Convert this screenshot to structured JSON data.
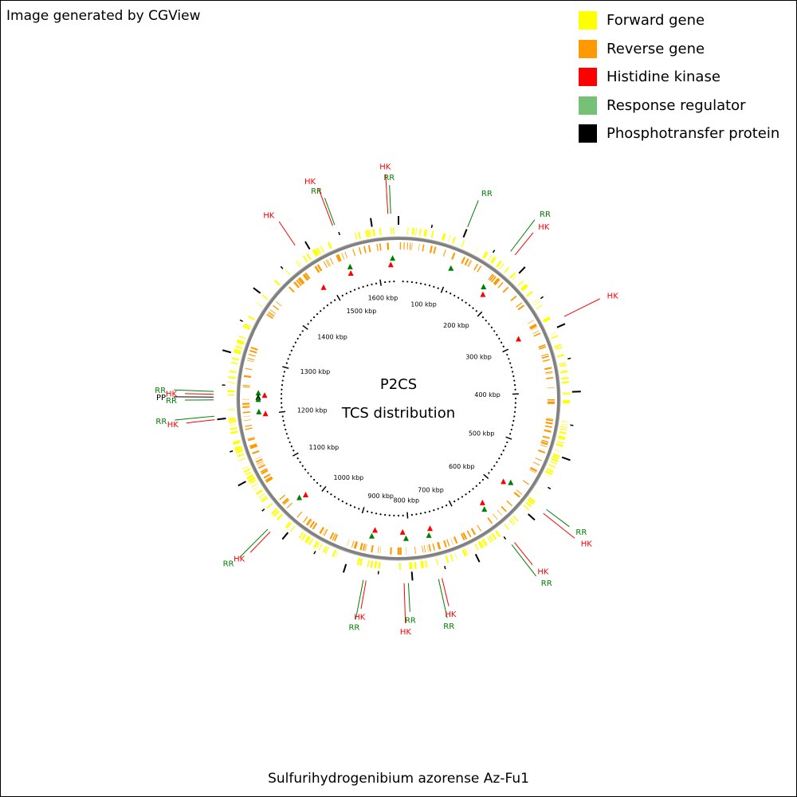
{
  "credit": "Image generated by CGView",
  "legend": [
    {
      "label": "Forward gene",
      "color": "#ffff00"
    },
    {
      "label": "Reverse gene",
      "color": "#ff9900"
    },
    {
      "label": "Histidine kinase",
      "color": "#ff0000"
    },
    {
      "label": "Response regulator",
      "color": "#77c077"
    },
    {
      "label": "Phosphotransfer protein",
      "color": "#000000"
    }
  ],
  "center": {
    "line1": "P2CS",
    "line2": "TCS distribution"
  },
  "organism": "Sulfurihydrogenibium azorense Az-Fu1",
  "colors": {
    "forward": "#ffff00",
    "reverse": "#ff9900",
    "backbone": "#808080",
    "hk": "#ff0000",
    "rr": "#008000",
    "pp": "#000000"
  },
  "genome_kbp": 1640,
  "kbp_ticks": [
    {
      "kbp": 100,
      "label": "100 kbp"
    },
    {
      "kbp": 200,
      "label": "200 kbp"
    },
    {
      "kbp": 300,
      "label": "300 kbp"
    },
    {
      "kbp": 400,
      "label": "400 kbp"
    },
    {
      "kbp": 500,
      "label": "500 kbp"
    },
    {
      "kbp": 600,
      "label": "600 kbp"
    },
    {
      "kbp": 700,
      "label": "700 kbp"
    },
    {
      "kbp": 800,
      "label": "800 kbp"
    },
    {
      "kbp": 900,
      "label": "900 kbp"
    },
    {
      "kbp": 1000,
      "label": "1000 kbp"
    },
    {
      "kbp": 1100,
      "label": "1100 kbp"
    },
    {
      "kbp": 1200,
      "label": "1200 kbp"
    },
    {
      "kbp": 1300,
      "label": "1300 kbp"
    },
    {
      "kbp": 1400,
      "label": "1400 kbp"
    },
    {
      "kbp": 1500,
      "label": "1500 kbp"
    },
    {
      "kbp": 1600,
      "label": "1600 kbp"
    }
  ],
  "tcs_callouts": [
    {
      "label": "RR",
      "type": "rr",
      "kbp": 1629
    },
    {
      "label": "HK",
      "type": "hk",
      "kbp": 1625
    },
    {
      "label": "RR",
      "type": "rr",
      "kbp": 100
    },
    {
      "label": "RR",
      "type": "rr",
      "kbp": 170
    },
    {
      "label": "HK",
      "type": "hk",
      "kbp": 178
    },
    {
      "label": "HK",
      "type": "hk",
      "kbp": 290
    },
    {
      "label": "RR",
      "type": "rr",
      "kbp": 1548
    },
    {
      "label": "HK",
      "type": "hk",
      "kbp": 1545
    },
    {
      "label": "HK",
      "type": "hk",
      "kbp": 1485
    },
    {
      "label": "RR",
      "type": "rr",
      "kbp": 1240
    },
    {
      "label": "HK",
      "type": "hk",
      "kbp": 1236
    },
    {
      "label": "PP",
      "type": "pp",
      "kbp": 1232
    },
    {
      "label": "RR",
      "type": "rr",
      "kbp": 1228
    },
    {
      "label": "RR",
      "type": "rr",
      "kbp": 1205
    },
    {
      "label": "HK",
      "type": "hk",
      "kbp": 1200
    },
    {
      "label": "RR",
      "type": "rr",
      "kbp": 1025
    },
    {
      "label": "HK",
      "type": "hk",
      "kbp": 1020
    },
    {
      "label": "RR",
      "type": "rr",
      "kbp": 870
    },
    {
      "label": "HK",
      "type": "hk",
      "kbp": 866
    },
    {
      "label": "HK",
      "type": "hk",
      "kbp": 812
    },
    {
      "label": "RR",
      "type": "rr",
      "kbp": 806
    },
    {
      "label": "RR",
      "type": "rr",
      "kbp": 763
    },
    {
      "label": "HK",
      "type": "hk",
      "kbp": 758
    },
    {
      "label": "RR",
      "type": "rr",
      "kbp": 648
    },
    {
      "label": "HK",
      "type": "hk",
      "kbp": 643
    },
    {
      "label": "HK",
      "type": "hk",
      "kbp": 585
    },
    {
      "label": "RR",
      "type": "rr",
      "kbp": 578
    }
  ]
}
